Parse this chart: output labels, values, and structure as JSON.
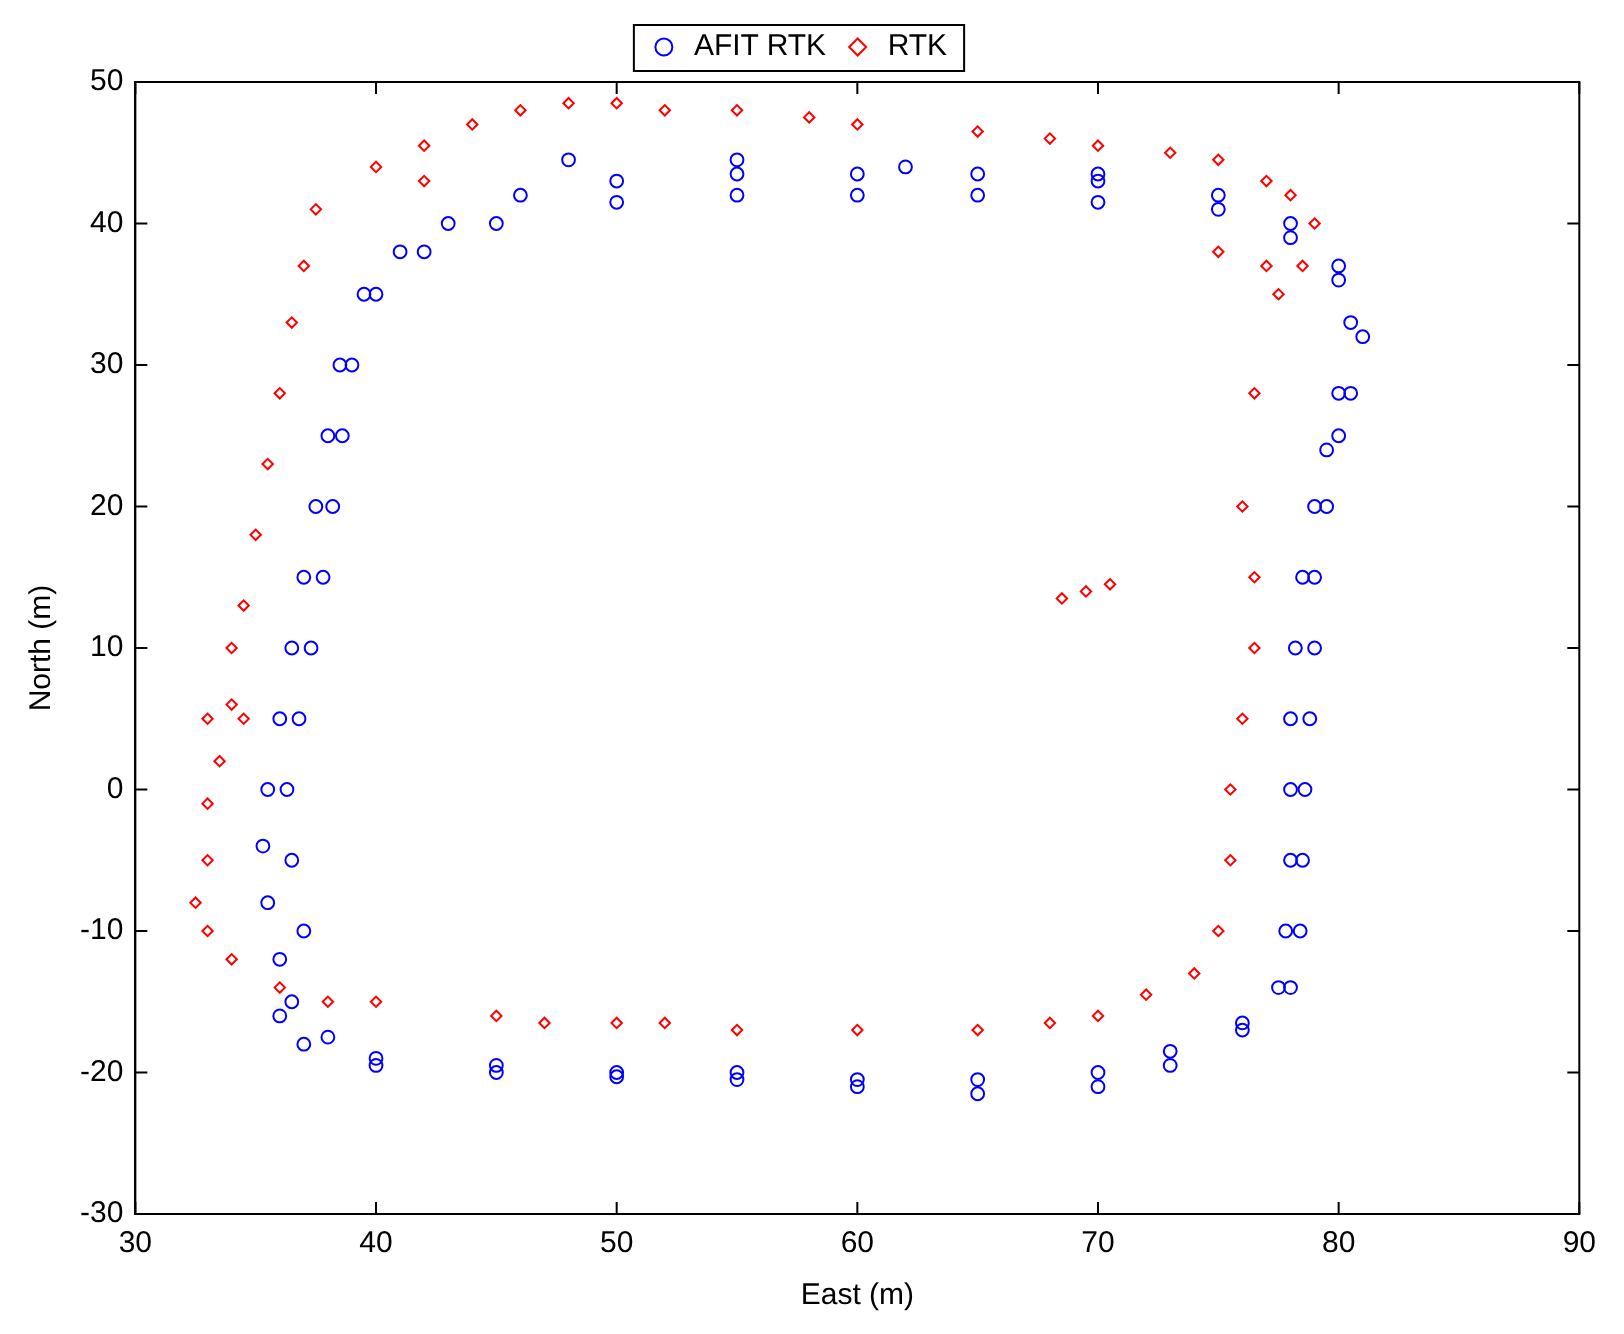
{
  "chart_data": {
    "type": "scatter",
    "xlabel": "East (m)",
    "ylabel": "North (m)",
    "xlim": [
      30,
      90
    ],
    "xticks": [
      30,
      40,
      50,
      60,
      70,
      80,
      90
    ],
    "ylim": [
      -30,
      50
    ],
    "yticks": [
      -30,
      -20,
      -10,
      0,
      10,
      20,
      30,
      40,
      50
    ],
    "grid": false,
    "legend": "top",
    "series": [
      {
        "name": "AFIT RTK",
        "color": "#0000ff",
        "marker": "circle",
        "x": [
          36,
          35.5,
          35.3,
          35.5,
          36,
          36.5,
          37,
          37.5,
          38,
          38.5,
          39.5,
          41,
          43,
          46,
          50,
          55,
          60,
          65,
          70,
          75,
          78,
          80,
          80.5,
          80,
          79.5,
          79,
          78.5,
          78.2,
          78,
          78,
          78,
          77.8,
          77.5,
          76,
          73,
          70,
          65,
          60,
          55,
          50,
          45,
          40,
          38,
          36.5,
          37,
          36.5,
          36.3,
          36.8,
          37.3,
          37.8,
          38.2,
          38.6,
          39,
          40,
          42,
          45,
          50,
          55,
          60,
          65,
          70,
          75,
          78,
          80,
          81,
          80.5,
          80,
          79.5,
          79,
          79,
          78.8,
          78.6,
          78.5,
          78.4,
          78,
          76,
          73,
          70,
          65,
          60,
          55,
          50,
          45,
          40,
          37,
          36,
          48,
          55,
          62,
          70
        ],
        "values": [
          -12,
          -8,
          -4,
          0,
          5,
          10,
          15,
          20,
          25,
          30,
          35,
          38,
          40,
          42,
          43,
          43.5,
          43.5,
          43.5,
          43,
          42,
          40,
          37,
          33,
          28,
          24,
          20,
          15,
          10,
          5,
          0,
          -5,
          -10,
          -14,
          -16.5,
          -18.5,
          -20,
          -20.5,
          -20.5,
          -20,
          -20,
          -19.5,
          -19,
          -17.5,
          -15,
          -10,
          -5,
          0,
          5,
          10,
          15,
          20,
          25,
          30,
          35,
          38,
          40,
          41.5,
          42,
          42,
          42,
          41.5,
          41,
          39,
          36,
          32,
          28,
          25,
          20,
          15,
          10,
          5,
          0,
          -5,
          -10,
          -14,
          -17,
          -19.5,
          -21,
          -21.5,
          -21,
          -20.5,
          -20.3,
          -20,
          -19.5,
          -18,
          -16,
          44.5,
          44.5,
          44,
          43.5
        ]
      },
      {
        "name": "RTK",
        "color": "#ff0000",
        "marker": "diamond",
        "x": [
          32.5,
          33,
          33,
          33.5,
          33,
          34,
          34.5,
          34,
          34.5,
          35,
          35.5,
          36,
          36.5,
          37,
          37.5,
          40,
          42,
          44,
          46,
          48,
          50,
          52,
          55,
          58,
          60,
          65,
          68,
          70,
          73,
          75,
          77,
          78,
          79,
          78.5,
          77.5,
          76.5,
          76,
          76.5,
          76.5,
          76,
          75.5,
          75.5,
          75,
          74,
          72,
          70,
          68,
          65,
          60,
          55,
          52,
          50,
          47,
          45,
          40,
          38,
          36,
          34,
          33,
          68.5,
          69.5,
          70.5,
          42,
          75,
          77
        ],
        "values": [
          -8,
          -5,
          -1,
          2,
          5,
          6,
          5,
          10,
          13,
          18,
          23,
          28,
          33,
          37,
          41,
          44,
          45.5,
          47,
          48,
          48.5,
          48.5,
          48,
          48,
          47.5,
          47,
          46.5,
          46,
          45.5,
          45,
          44.5,
          43,
          42,
          40,
          37,
          35,
          28,
          20,
          15,
          10,
          5,
          0,
          -5,
          -10,
          -13,
          -14.5,
          -16,
          -16.5,
          -17,
          -17,
          -17,
          -16.5,
          -16.5,
          -16.5,
          -16,
          -15,
          -15,
          -14,
          -12,
          -10,
          13.5,
          14,
          14.5,
          43,
          38,
          37
        ]
      }
    ]
  }
}
